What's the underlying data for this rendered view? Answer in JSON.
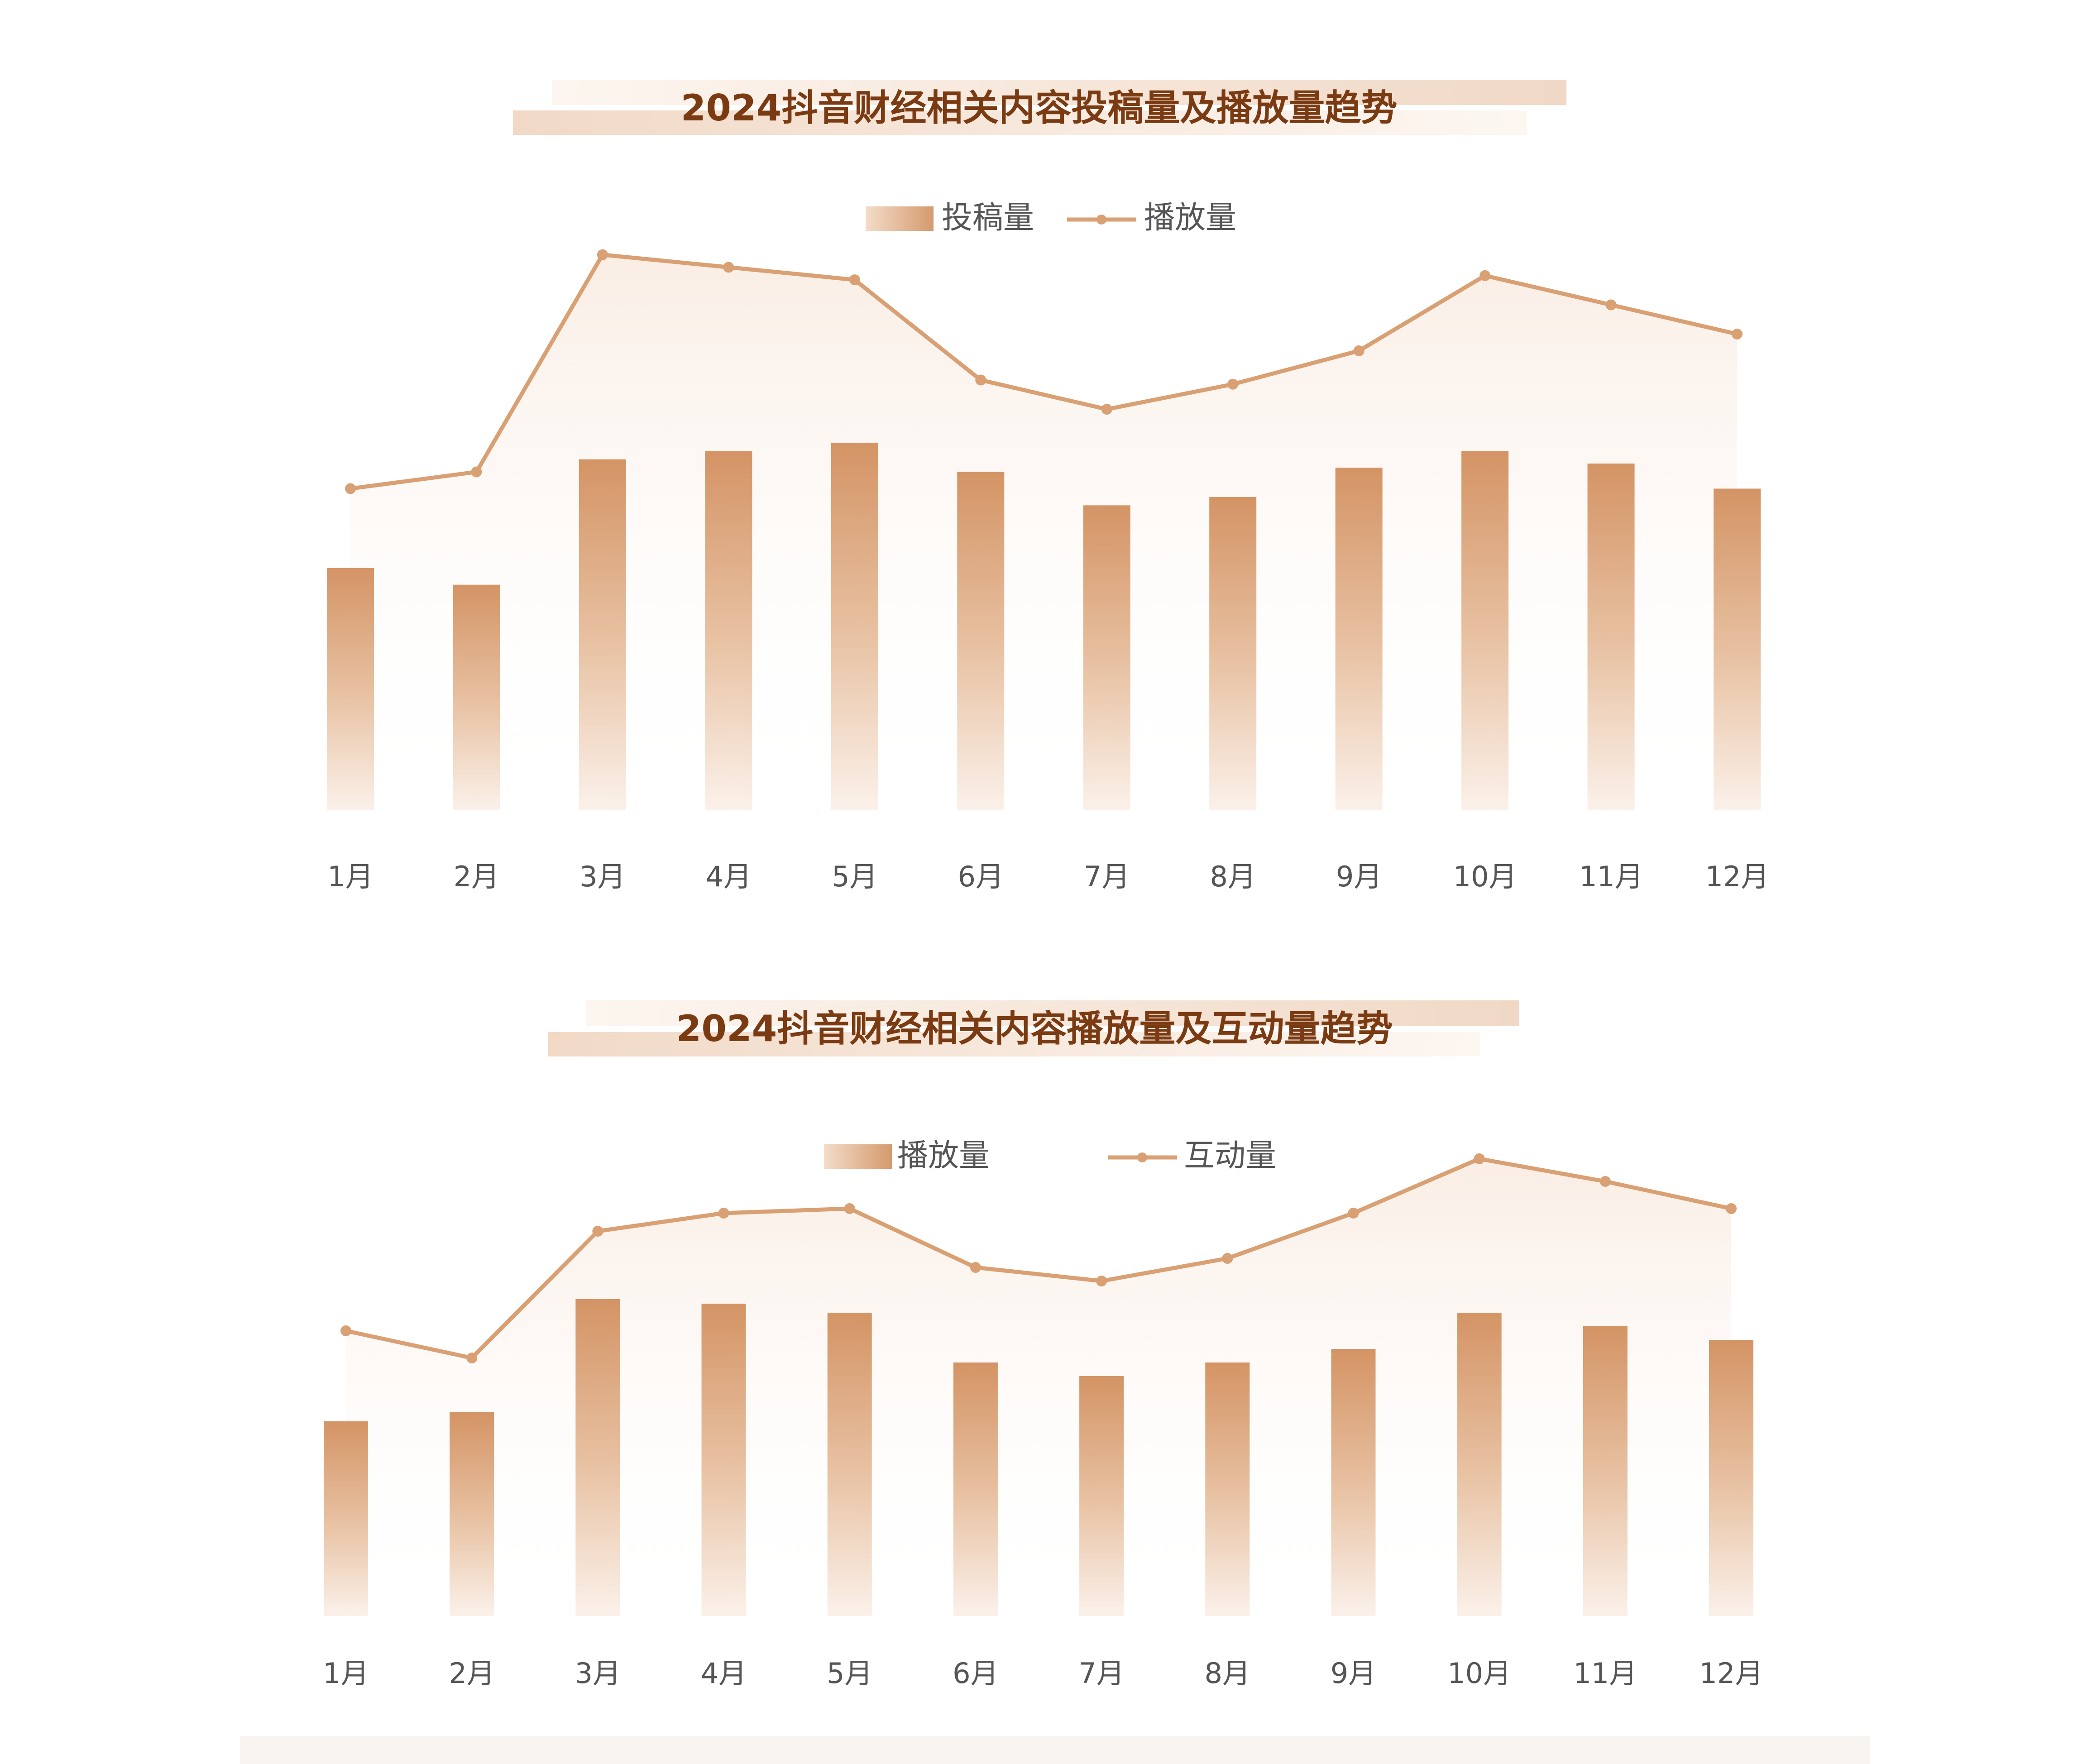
{
  "colors": {
    "title": "#7a3a12",
    "accent": "#d69a6c",
    "line": "#d9a073",
    "tick": "#555555",
    "legend": "#555555"
  },
  "chart_data": [
    {
      "type": "bar",
      "title": "2024抖音财经相关内容投稿量及播放量趋势",
      "categories": [
        "1月",
        "2月",
        "3月",
        "4月",
        "5月",
        "6月",
        "7月",
        "8月",
        "9月",
        "10月",
        "11月",
        "12月"
      ],
      "series": [
        {
          "name": "投稿量",
          "type": "bar",
          "values": [
            58,
            54,
            84,
            86,
            88,
            81,
            73,
            75,
            82,
            86,
            83,
            77
          ]
        },
        {
          "name": "播放量",
          "type": "line",
          "values": [
            77,
            81,
            133,
            130,
            127,
            103,
            96,
            102,
            110,
            128,
            121,
            114
          ]
        }
      ],
      "ylim": [
        0,
        145
      ],
      "grid": false,
      "legend_position": "top-center"
    },
    {
      "type": "bar",
      "title": "2024抖音财经相关内容播放量及互动量趋势",
      "categories": [
        "1月",
        "2月",
        "3月",
        "4月",
        "5月",
        "6月",
        "7月",
        "8月",
        "9月",
        "10月",
        "11月",
        "12月"
      ],
      "series": [
        {
          "name": "播放量",
          "type": "bar",
          "values": [
            43,
            45,
            70,
            69,
            67,
            56,
            53,
            56,
            59,
            67,
            64,
            61
          ]
        },
        {
          "name": "互动量",
          "type": "line",
          "values": [
            63,
            57,
            85,
            89,
            90,
            77,
            74,
            79,
            89,
            101,
            96,
            90
          ]
        }
      ],
      "ylim": [
        0,
        107
      ],
      "grid": false,
      "legend_position": "top-center"
    }
  ]
}
